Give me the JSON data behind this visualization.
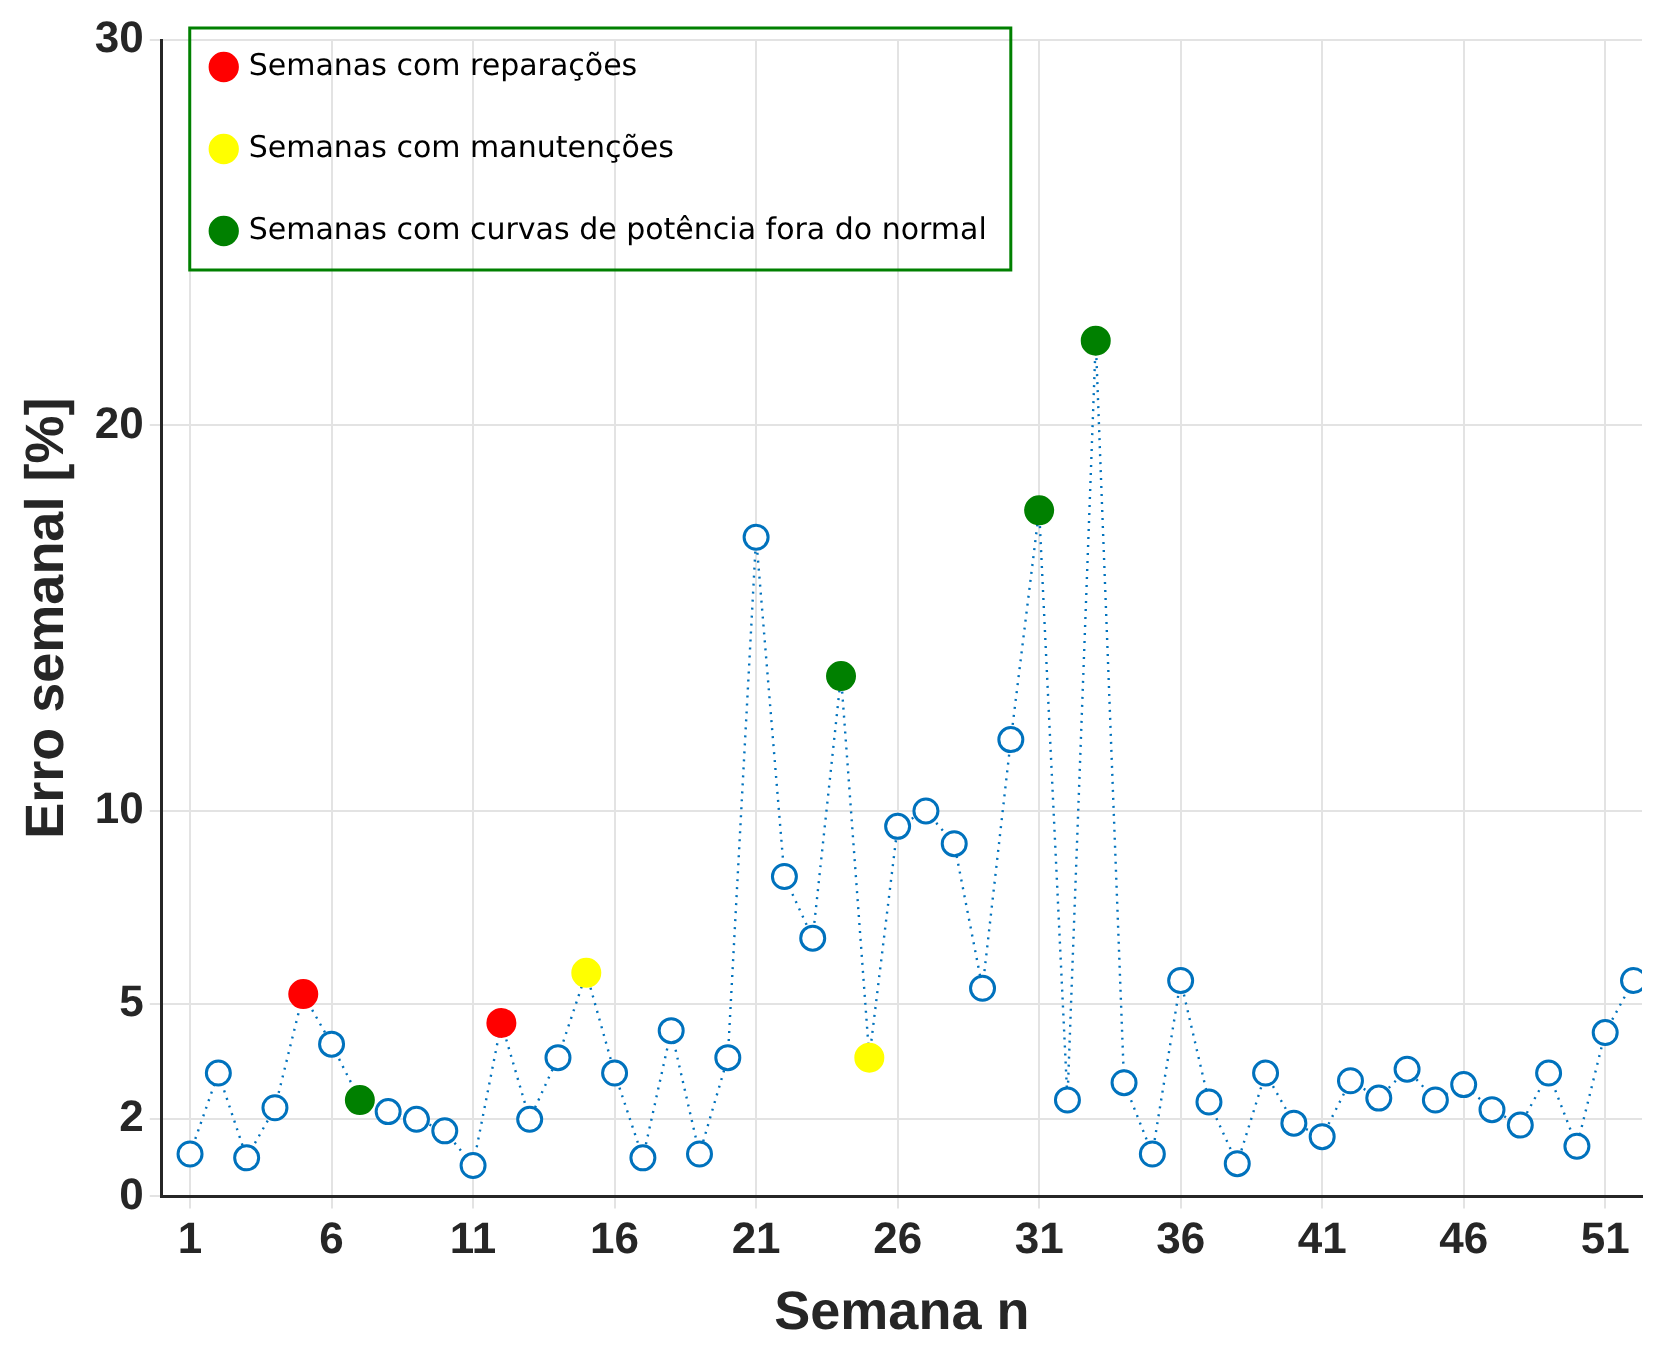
{
  "chart_data": {
    "type": "line",
    "xlabel": "Semana n",
    "ylabel": "Erro semanal [%]",
    "x": [
      1,
      2,
      3,
      4,
      5,
      6,
      7,
      8,
      9,
      10,
      11,
      12,
      13,
      14,
      15,
      16,
      17,
      18,
      19,
      20,
      21,
      22,
      23,
      24,
      25,
      26,
      27,
      28,
      29,
      30,
      31,
      32,
      33,
      34,
      35,
      36,
      37,
      38,
      39,
      40,
      41,
      42,
      43,
      44,
      45,
      46,
      47,
      48,
      49,
      50,
      51,
      52
    ],
    "series": [
      {
        "color": "#0072bd",
        "values": [
          1.1,
          3.2,
          1.0,
          2.3,
          5.25,
          3.95,
          2.5,
          2.2,
          2.0,
          1.7,
          0.8,
          4.5,
          2.0,
          3.6,
          5.8,
          3.2,
          1.0,
          4.3,
          1.1,
          3.6,
          17.1,
          8.3,
          6.7,
          13.5,
          3.6,
          9.6,
          10.0,
          9.15,
          5.4,
          11.85,
          17.8,
          2.5,
          22.2,
          2.95,
          1.1,
          5.6,
          2.45,
          0.85,
          3.2,
          1.9,
          1.55,
          3.0,
          2.55,
          3.3,
          2.5,
          2.9,
          2.25,
          1.85,
          3.2,
          1.3,
          4.25,
          5.6
        ]
      },
      {
        "type": "scatter",
        "name": "Semanas com reparações",
        "color": "#ff0000",
        "x": [
          5,
          12
        ],
        "values": [
          5.25,
          4.5
        ]
      },
      {
        "type": "scatter",
        "name": "Semanas com manutenções",
        "color": "#ffff00",
        "x": [
          15,
          25
        ],
        "values": [
          5.8,
          3.6
        ]
      },
      {
        "type": "scatter",
        "name": "Semanas com curvas de potência fora do normal",
        "color": "#008000",
        "x": [
          7,
          24,
          31,
          33
        ],
        "values": [
          2.5,
          13.5,
          17.8,
          22.2
        ]
      }
    ],
    "xlim": [
      0,
      52.3
    ],
    "xticks": [
      1,
      6,
      11,
      16,
      21,
      26,
      31,
      36,
      41,
      46,
      51
    ],
    "ylim": [
      0,
      30
    ],
    "yticks": [
      0,
      2,
      5,
      10,
      20,
      30
    ],
    "grid": true,
    "legend": "top left",
    "marker": "circle",
    "line_style": "dotted"
  }
}
